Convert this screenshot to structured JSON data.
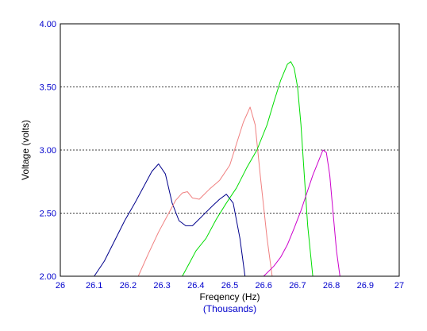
{
  "chart_data": {
    "type": "line",
    "title": "",
    "xlabel": "Freqency (Hz)",
    "xlabel_sub": "(Thousands)",
    "ylabel": "Voltage (volts)",
    "xlim": [
      26,
      27
    ],
    "ylim": [
      2.0,
      4.0
    ],
    "x_ticks": [
      "26",
      "26.1",
      "26.2",
      "26.3",
      "26.4",
      "26.5",
      "26.6",
      "26.7",
      "26.8",
      "26.9",
      "27"
    ],
    "y_ticks": [
      "2.00",
      "2.50",
      "3.00",
      "3.50",
      "4.00"
    ],
    "grid": "horizontal dashed at 2.50, 3.00, 3.50",
    "legend": "none",
    "series": [
      {
        "color": "#00008b",
        "x": [
          26.1,
          26.13,
          26.16,
          26.19,
          26.22,
          26.25,
          26.27,
          26.29,
          26.31,
          26.33,
          26.35,
          26.37,
          26.39,
          26.42,
          26.45,
          26.47,
          26.49,
          26.51,
          26.53,
          26.545
        ],
        "y": [
          2.0,
          2.12,
          2.28,
          2.44,
          2.58,
          2.73,
          2.83,
          2.89,
          2.81,
          2.58,
          2.44,
          2.4,
          2.4,
          2.48,
          2.56,
          2.61,
          2.65,
          2.58,
          2.3,
          2.0
        ]
      },
      {
        "color": "#f08080",
        "x": [
          26.23,
          26.26,
          26.29,
          26.32,
          26.34,
          26.36,
          26.375,
          26.39,
          26.41,
          26.44,
          26.47,
          26.5,
          26.52,
          26.54,
          26.56,
          26.575,
          26.59,
          26.61,
          26.625
        ],
        "y": [
          2.0,
          2.18,
          2.35,
          2.5,
          2.6,
          2.66,
          2.67,
          2.62,
          2.61,
          2.69,
          2.76,
          2.88,
          3.05,
          3.22,
          3.34,
          3.2,
          2.8,
          2.3,
          2.0
        ]
      },
      {
        "color": "#00dd00",
        "x": [
          26.36,
          26.38,
          26.4,
          26.43,
          26.46,
          26.49,
          26.52,
          26.55,
          26.58,
          26.61,
          26.63,
          26.65,
          26.67,
          26.68,
          26.69,
          26.7,
          26.71,
          26.72,
          26.73,
          26.745
        ],
        "y": [
          2.0,
          2.1,
          2.2,
          2.3,
          2.45,
          2.58,
          2.7,
          2.86,
          3.0,
          3.2,
          3.38,
          3.55,
          3.68,
          3.7,
          3.65,
          3.5,
          3.2,
          2.8,
          2.4,
          2.0
        ]
      },
      {
        "color": "#cc00cc",
        "x": [
          26.6,
          26.63,
          26.65,
          26.67,
          26.69,
          26.71,
          26.73,
          26.745,
          26.76,
          26.775,
          26.785,
          26.795,
          26.805,
          26.815,
          26.825
        ],
        "y": [
          2.0,
          2.08,
          2.15,
          2.25,
          2.38,
          2.52,
          2.68,
          2.8,
          2.9,
          3.0,
          2.98,
          2.8,
          2.5,
          2.2,
          2.0
        ]
      }
    ]
  }
}
